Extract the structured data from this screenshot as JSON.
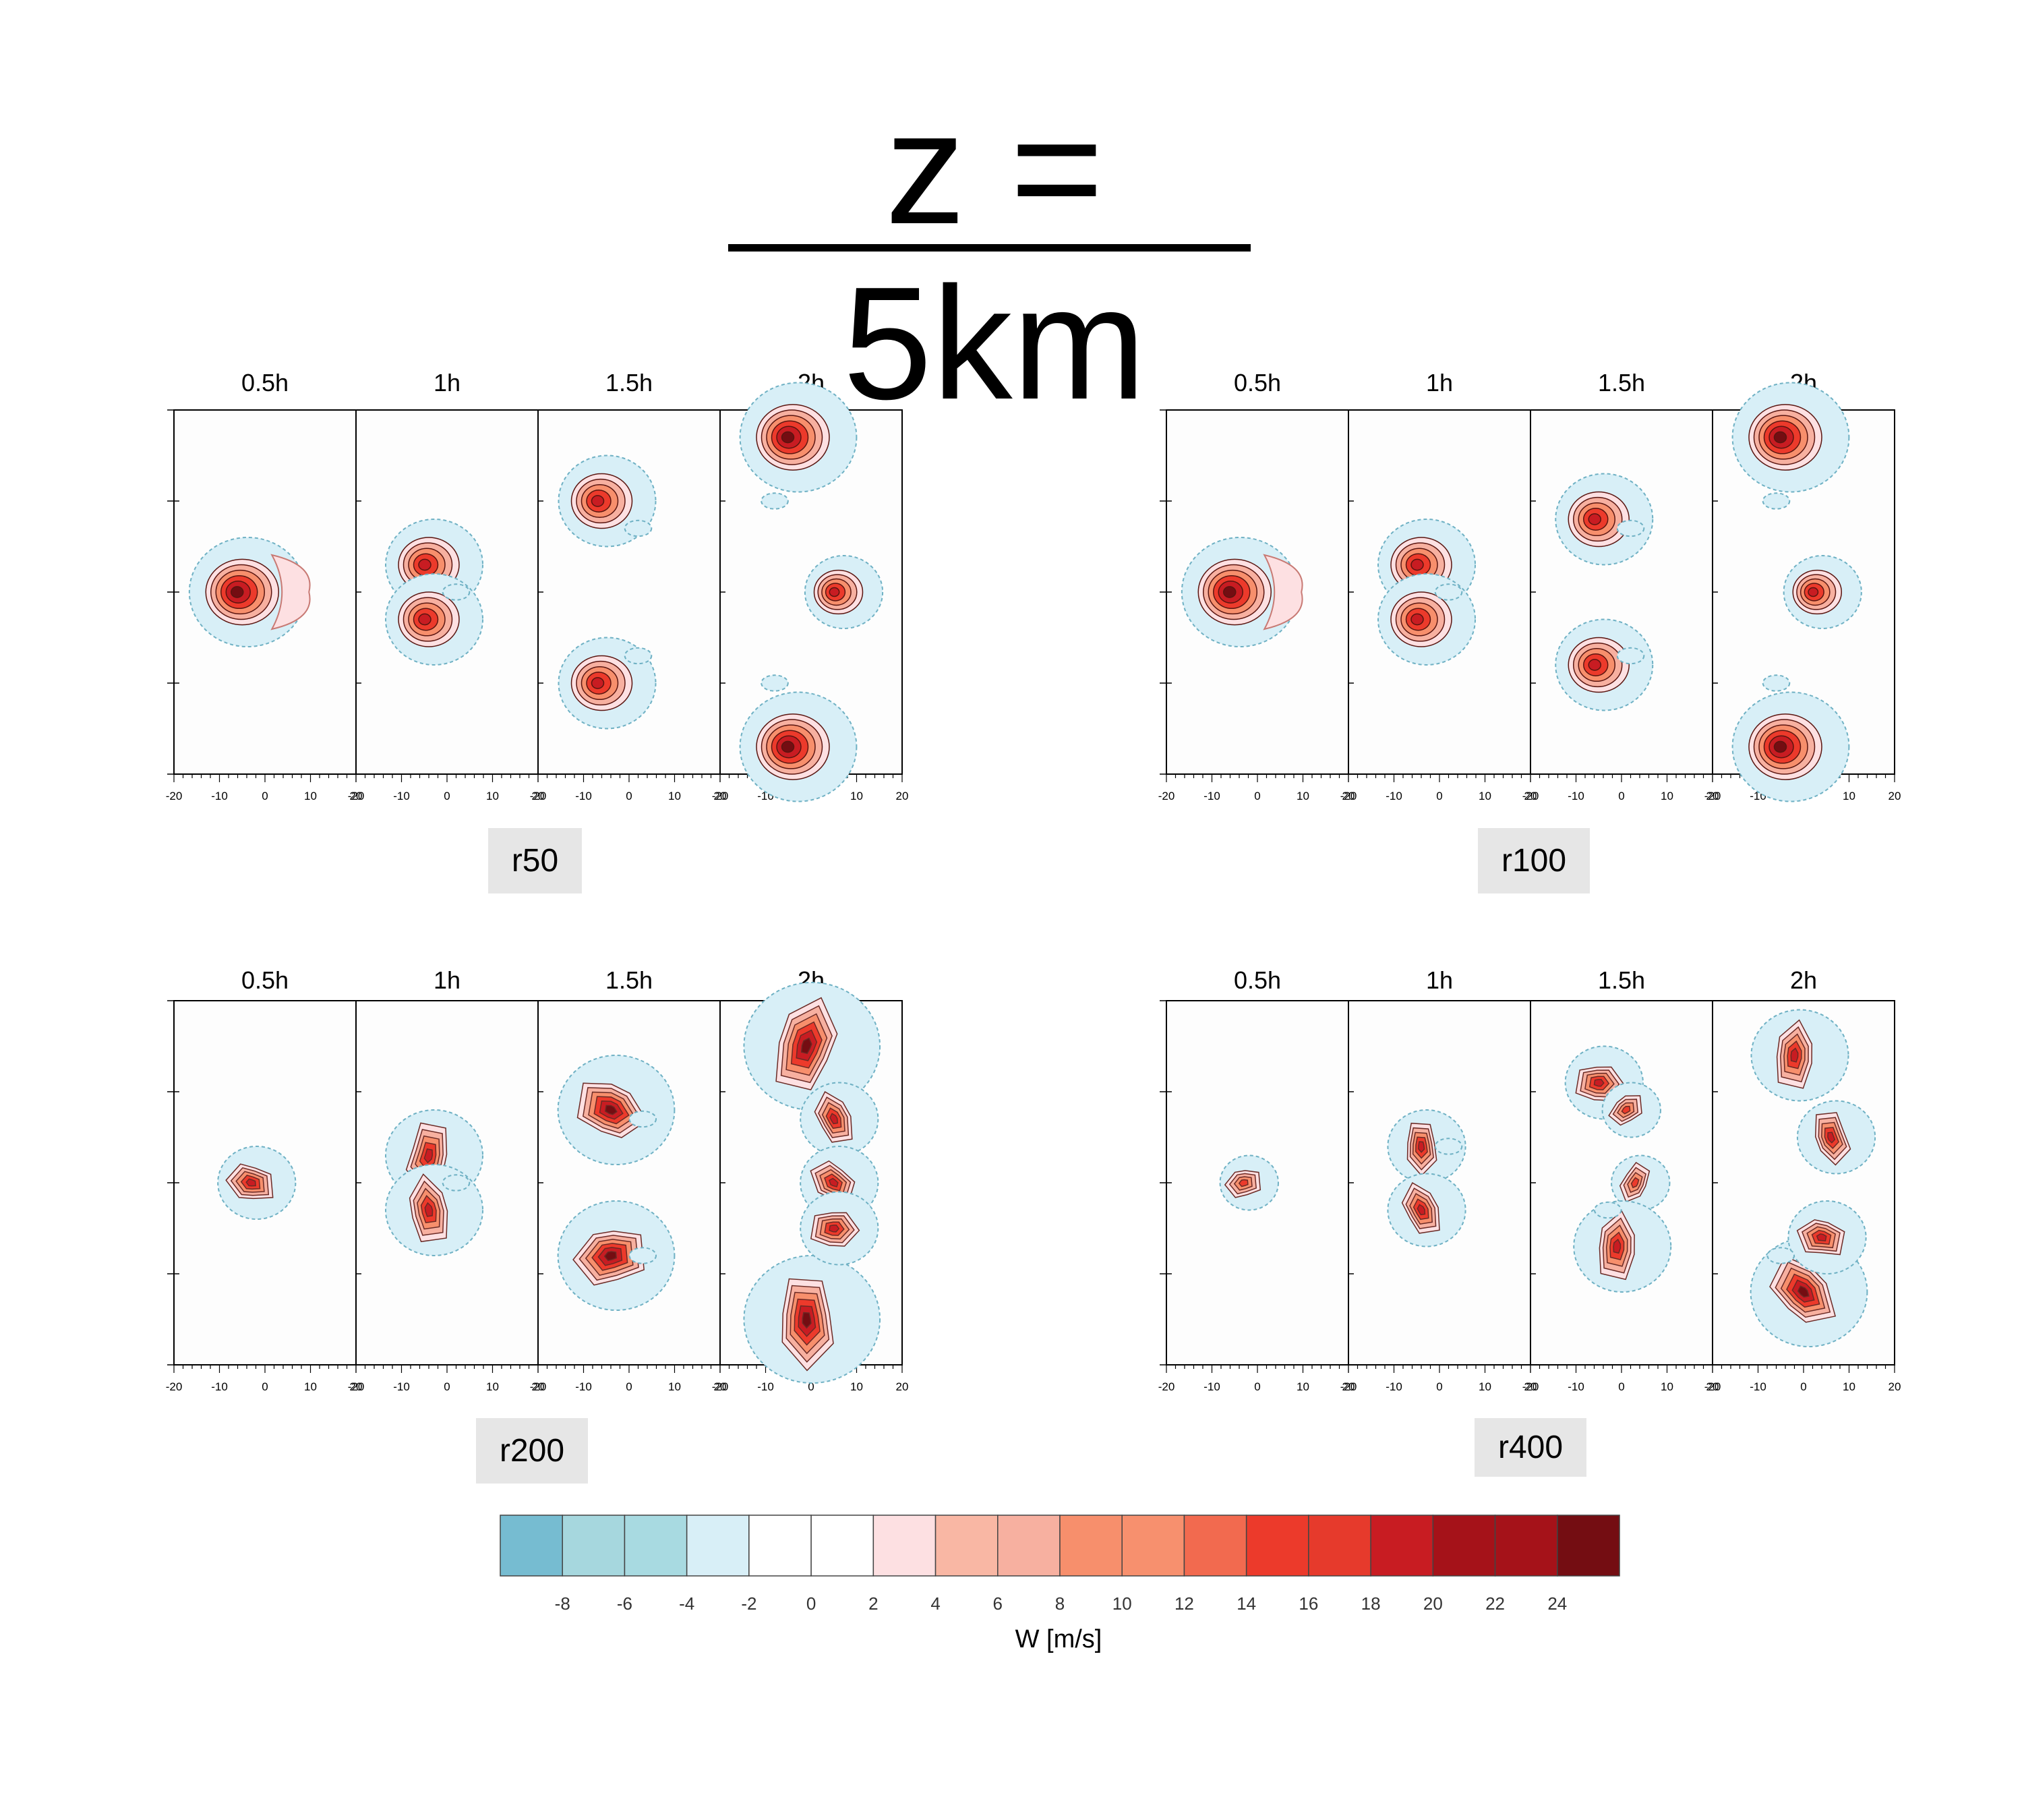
{
  "title": "z = 5km",
  "runs": [
    {
      "label": "r50"
    },
    {
      "label": "r100"
    },
    {
      "label": "r200"
    },
    {
      "label": "r400"
    }
  ],
  "colors": {
    "negative_outline": "#6fb1c4",
    "positive_outline": "#7a1f14",
    "background": "#fdfdfd"
  },
  "chart_data": {
    "type": "heatmap",
    "variable": "W [m/s]",
    "panel_times": [
      "0.5h",
      "1h",
      "1.5h",
      "2h"
    ],
    "x_ticks": [
      "-20",
      "-10",
      "0",
      "10",
      "20"
    ],
    "xlim": [
      -20,
      20
    ],
    "colorbar": {
      "label": "W [m/s]",
      "tick_labels": [
        "-8",
        "-6",
        "-4",
        "-2",
        "0",
        "2",
        "4",
        "6",
        "8",
        "10",
        "12",
        "14",
        "16",
        "18",
        "20",
        "22",
        "24"
      ],
      "levels": [
        -8,
        -6,
        -4,
        -2,
        0,
        2,
        4,
        6,
        8,
        10,
        12,
        14,
        16,
        18,
        20,
        22,
        24
      ],
      "colors": [
        "#76bcd1",
        "#a6d7de",
        "#a8dae1",
        "#d8eff7",
        "#ffffff",
        "#ffffff",
        "#fde0e2",
        "#f9b7a4",
        "#f7b0a0",
        "#f78f6c",
        "#f7906e",
        "#f26a4f",
        "#ec3a2b",
        "#e63a2c",
        "#c81c22",
        "#a51219",
        "#a51219",
        "#740d12"
      ]
    },
    "blobs": {
      "r50": [
        [
          [
            -5,
            0,
            6,
            "smooth"
          ],
          [
            3,
            0,
            2,
            "smooth-arc"
          ]
        ],
        [
          [
            -4,
            3,
            5,
            "smooth"
          ],
          [
            -4,
            -3,
            5,
            "smooth"
          ],
          [
            2,
            0,
            1,
            "smooth-neg"
          ]
        ],
        [
          [
            -6,
            10,
            5,
            "smooth"
          ],
          [
            -6,
            -10,
            5,
            "smooth"
          ],
          [
            2,
            7,
            1,
            "smooth-neg"
          ],
          [
            2,
            -7,
            1,
            "smooth-neg"
          ]
        ],
        [
          [
            -4,
            17,
            6,
            "smooth"
          ],
          [
            -4,
            -17,
            6,
            "smooth"
          ],
          [
            6,
            0,
            4,
            "smooth"
          ],
          [
            -8,
            10,
            1,
            "smooth-neg"
          ],
          [
            -8,
            -10,
            1,
            "smooth-neg"
          ]
        ]
      ],
      "r100": [
        [
          [
            -5,
            0,
            6,
            "smooth"
          ],
          [
            3,
            0,
            2,
            "smooth-arc"
          ]
        ],
        [
          [
            -4,
            3,
            5,
            "smooth"
          ],
          [
            -4,
            -3,
            5,
            "smooth"
          ],
          [
            2,
            0,
            1,
            "smooth-neg"
          ]
        ],
        [
          [
            -5,
            8,
            5,
            "smooth"
          ],
          [
            -5,
            -8,
            5,
            "smooth"
          ],
          [
            2,
            7,
            1,
            "smooth-neg"
          ],
          [
            2,
            -7,
            1,
            "smooth-neg"
          ]
        ],
        [
          [
            -4,
            17,
            6,
            "smooth"
          ],
          [
            -4,
            -17,
            6,
            "smooth"
          ],
          [
            3,
            0,
            4,
            "smooth"
          ],
          [
            -6,
            10,
            1,
            "smooth-neg"
          ],
          [
            -6,
            -10,
            1,
            "smooth-neg"
          ]
        ]
      ],
      "r200": [
        [
          [
            -3,
            0,
            4,
            "rough"
          ]
        ],
        [
          [
            -4,
            3,
            5,
            "rough"
          ],
          [
            -4,
            -3,
            5,
            "rough"
          ],
          [
            2,
            0,
            1,
            "rough-neg"
          ]
        ],
        [
          [
            -4,
            8,
            6,
            "rough"
          ],
          [
            -4,
            -8,
            6,
            "rough"
          ],
          [
            3,
            7,
            1,
            "rough-neg"
          ],
          [
            3,
            -8,
            1,
            "rough-neg"
          ]
        ],
        [
          [
            -1,
            15,
            7,
            "rough"
          ],
          [
            -1,
            -15,
            7,
            "rough"
          ],
          [
            5,
            7,
            4,
            "rough"
          ],
          [
            5,
            0,
            4,
            "rough"
          ],
          [
            5,
            -5,
            4,
            "rough"
          ]
        ]
      ],
      "r400": [
        [
          [
            -3,
            0,
            3,
            "rough"
          ]
        ],
        [
          [
            -4,
            4,
            4,
            "rough"
          ],
          [
            -4,
            -3,
            4,
            "rough"
          ],
          [
            2,
            4,
            1,
            "rough-neg"
          ]
        ],
        [
          [
            -5,
            11,
            4,
            "rough"
          ],
          [
            1,
            8,
            3,
            "rough"
          ],
          [
            3,
            0,
            3,
            "rough"
          ],
          [
            -1,
            -7,
            5,
            "rough"
          ],
          [
            -3,
            -3,
            1,
            "rough-neg"
          ]
        ],
        [
          [
            -2,
            14,
            5,
            "rough"
          ],
          [
            6,
            5,
            4,
            "rough"
          ],
          [
            0,
            -12,
            6,
            "rough"
          ],
          [
            4,
            -6,
            4,
            "rough"
          ],
          [
            -5,
            -8,
            1,
            "rough-neg"
          ]
        ]
      ]
    }
  }
}
